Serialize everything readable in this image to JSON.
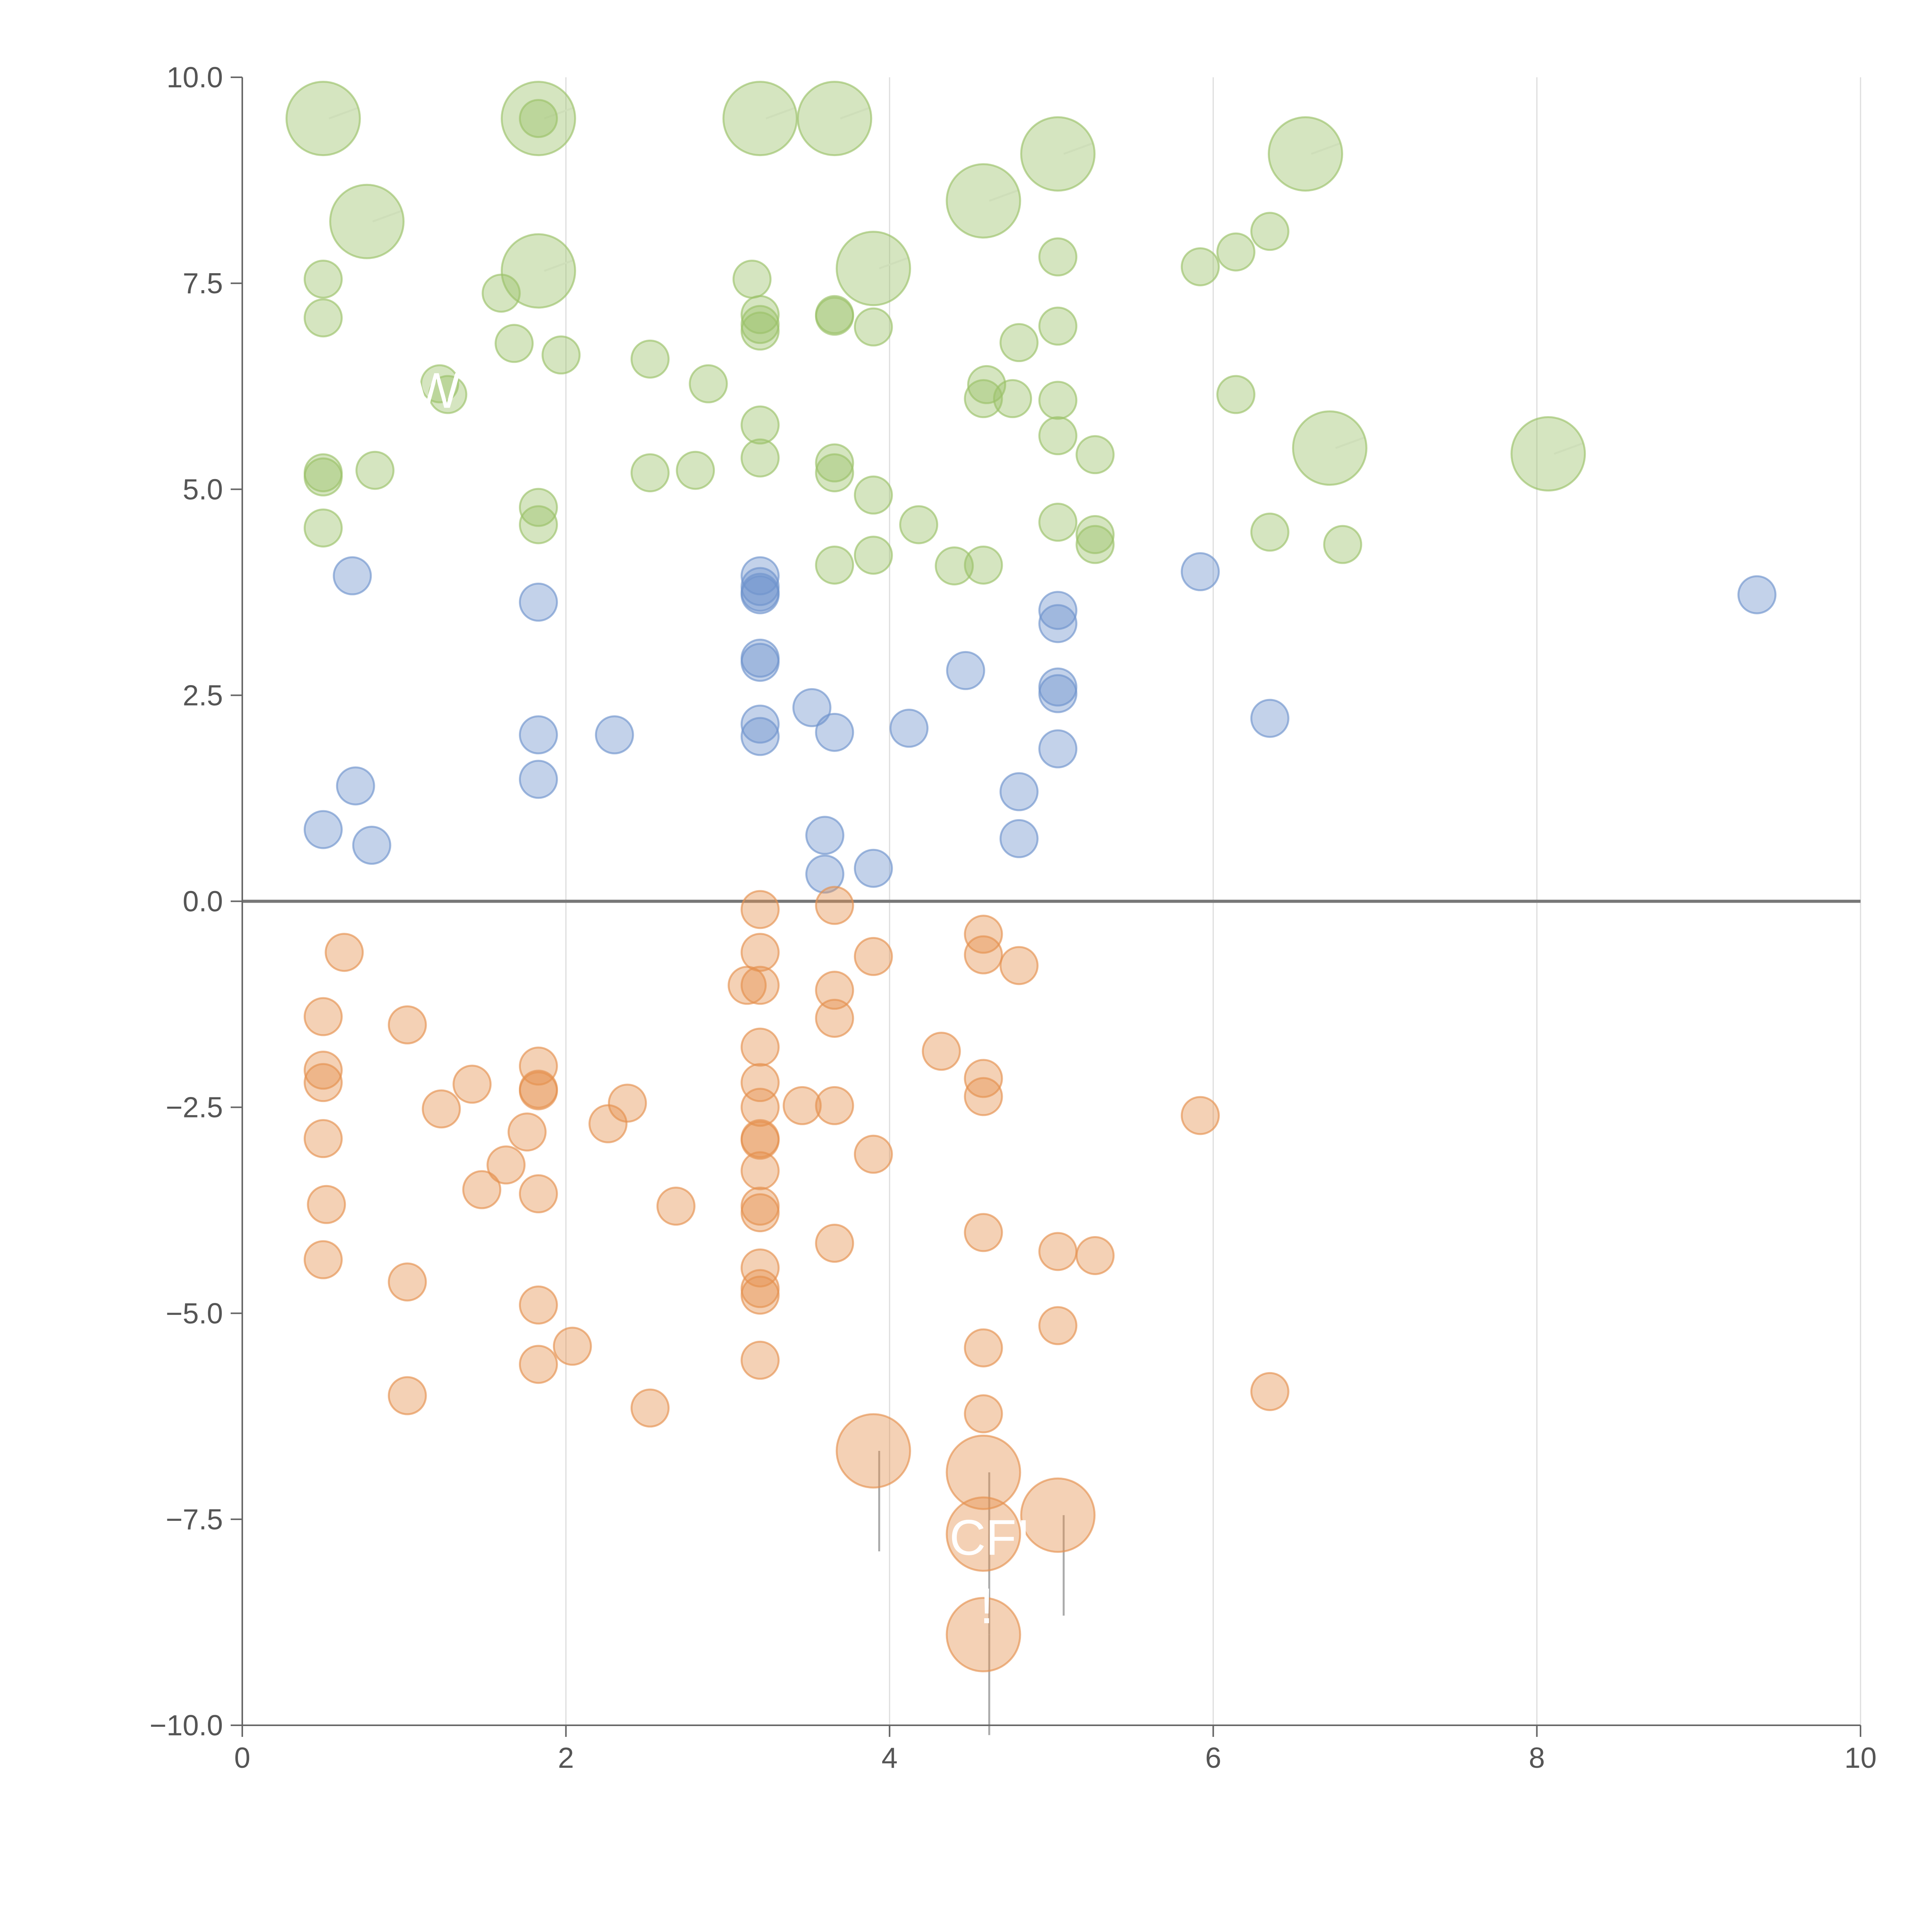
{
  "chart_data": {
    "type": "scatter",
    "title": "",
    "xlabel": "",
    "ylabel": "",
    "xlim": [
      0,
      10
    ],
    "ylim": [
      -10,
      10
    ],
    "x_ticks": [
      0,
      2,
      4,
      6,
      8,
      10
    ],
    "x_tick_labels": [
      "0",
      "2",
      "4",
      "6",
      "8",
      "10"
    ],
    "y_ticks": [
      -10,
      -7.5,
      -5,
      -2.5,
      0,
      2.5,
      5,
      7.5,
      10
    ],
    "y_tick_labels": [
      "−10.0",
      "−7.5",
      "−5.0",
      "−2.5",
      "0.0",
      "2.5",
      "5.0",
      "7.5",
      "10.0"
    ],
    "grid": "vertical",
    "zero_line": 0,
    "colors": {
      "green": "#9bc268",
      "blue": "#6f94cd",
      "orange": "#e5914f",
      "axis": "#666666",
      "grid": "#dddddd",
      "zero_line": "#777777",
      "leader_light": "#f3f3f3",
      "leader_dark": "#aaaaaa"
    },
    "series": [
      {
        "name": "green",
        "color": "#9bc268",
        "points": [
          [
            0.5,
            9.5,
            "l"
          ],
          [
            1.83,
            9.5,
            "l"
          ],
          [
            3.2,
            9.5,
            "l"
          ],
          [
            3.66,
            9.5,
            "l"
          ],
          [
            5.04,
            9.07,
            "l"
          ],
          [
            6.57,
            9.07,
            "l"
          ],
          [
            0.77,
            8.25,
            "l"
          ],
          [
            4.58,
            8.5,
            "l"
          ],
          [
            1.83,
            7.65,
            "l"
          ],
          [
            3.9,
            7.68,
            "l"
          ],
          [
            6.72,
            5.5,
            "l"
          ],
          [
            8.07,
            5.43,
            "l"
          ],
          [
            1.83,
            9.5,
            "s"
          ],
          [
            0.5,
            7.55
          ],
          [
            0.5,
            7.08
          ],
          [
            1.6,
            7.38
          ],
          [
            1.68,
            6.77
          ],
          [
            1.97,
            6.63
          ],
          [
            1.27,
            6.15
          ],
          [
            1.22,
            6.28
          ],
          [
            2.52,
            6.58
          ],
          [
            2.88,
            6.28
          ],
          [
            3.15,
            7.55
          ],
          [
            3.2,
            7.12
          ],
          [
            3.2,
            7.0
          ],
          [
            3.2,
            6.92
          ],
          [
            3.66,
            7.12
          ],
          [
            3.66,
            7.1
          ],
          [
            3.9,
            6.97
          ],
          [
            3.2,
            5.78
          ],
          [
            3.2,
            5.38
          ],
          [
            3.66,
            5.32
          ],
          [
            3.66,
            5.2
          ],
          [
            3.9,
            4.93
          ],
          [
            3.66,
            4.08
          ],
          [
            3.9,
            4.2
          ],
          [
            4.18,
            4.57
          ],
          [
            4.4,
            4.07
          ],
          [
            4.58,
            4.08
          ],
          [
            4.6,
            6.27
          ],
          [
            4.58,
            6.1
          ],
          [
            4.76,
            6.1
          ],
          [
            4.8,
            6.78
          ],
          [
            5.04,
            7.82
          ],
          [
            5.04,
            6.98
          ],
          [
            5.04,
            6.08
          ],
          [
            5.04,
            5.65
          ],
          [
            5.04,
            4.6
          ],
          [
            5.27,
            5.42
          ],
          [
            5.27,
            4.45
          ],
          [
            5.27,
            4.33
          ],
          [
            5.92,
            7.7
          ],
          [
            6.14,
            7.88
          ],
          [
            6.35,
            8.13
          ],
          [
            6.14,
            6.15
          ],
          [
            6.35,
            4.48
          ],
          [
            6.8,
            4.33
          ],
          [
            0.5,
            5.2
          ],
          [
            0.5,
            5.15
          ],
          [
            0.82,
            5.23
          ],
          [
            0.5,
            4.53
          ],
          [
            1.83,
            4.78
          ],
          [
            1.83,
            4.57
          ],
          [
            2.52,
            5.2
          ],
          [
            2.8,
            5.23
          ]
        ]
      },
      {
        "name": "blue",
        "color": "#6f94cd",
        "points": [
          [
            0.68,
            3.95
          ],
          [
            1.83,
            3.63
          ],
          [
            3.2,
            3.95
          ],
          [
            3.2,
            3.82
          ],
          [
            3.2,
            3.72
          ],
          [
            3.2,
            3.75
          ],
          [
            5.92,
            4.0
          ],
          [
            9.36,
            3.72
          ],
          [
            5.04,
            3.53
          ],
          [
            5.04,
            3.37
          ],
          [
            3.2,
            2.95
          ],
          [
            3.2,
            2.9
          ],
          [
            4.47,
            2.8
          ],
          [
            5.04,
            2.6
          ],
          [
            5.04,
            2.52
          ],
          [
            3.52,
            2.35
          ],
          [
            3.2,
            2.15
          ],
          [
            3.66,
            2.05
          ],
          [
            3.2,
            2.0
          ],
          [
            1.83,
            2.02
          ],
          [
            2.3,
            2.02
          ],
          [
            4.12,
            2.1
          ],
          [
            5.04,
            1.85
          ],
          [
            6.35,
            2.22
          ],
          [
            0.7,
            1.4
          ],
          [
            1.83,
            1.48
          ],
          [
            4.8,
            1.33
          ],
          [
            0.5,
            0.87
          ],
          [
            0.8,
            0.68
          ],
          [
            3.6,
            0.8
          ],
          [
            3.6,
            0.33
          ],
          [
            3.9,
            0.4
          ],
          [
            4.8,
            0.76
          ]
        ]
      },
      {
        "name": "orange",
        "color": "#e5914f",
        "points": [
          [
            3.2,
            -0.1
          ],
          [
            3.66,
            -0.05
          ],
          [
            4.58,
            -0.4
          ],
          [
            4.58,
            -0.65
          ],
          [
            4.8,
            -0.78
          ],
          [
            3.2,
            -0.62
          ],
          [
            3.9,
            -0.67
          ],
          [
            0.63,
            -0.62
          ],
          [
            3.12,
            -1.02
          ],
          [
            3.2,
            -1.02
          ],
          [
            3.66,
            -1.08
          ],
          [
            3.66,
            -1.42
          ],
          [
            0.5,
            -1.4
          ],
          [
            1.02,
            -1.5
          ],
          [
            3.2,
            -1.77
          ],
          [
            4.32,
            -1.82
          ],
          [
            0.5,
            -2.05
          ],
          [
            0.5,
            -2.2
          ],
          [
            1.42,
            -2.22
          ],
          [
            1.83,
            -2.0
          ],
          [
            1.83,
            -2.28
          ],
          [
            1.83,
            -2.3
          ],
          [
            3.2,
            -2.2
          ],
          [
            4.58,
            -2.15
          ],
          [
            4.58,
            -2.37
          ],
          [
            2.38,
            -2.45
          ],
          [
            3.46,
            -2.48
          ],
          [
            3.66,
            -2.48
          ],
          [
            1.23,
            -2.52
          ],
          [
            3.2,
            -2.5
          ],
          [
            2.26,
            -2.7
          ],
          [
            1.76,
            -2.8
          ],
          [
            0.5,
            -2.88
          ],
          [
            3.2,
            -2.88
          ],
          [
            3.2,
            -2.9
          ],
          [
            5.92,
            -2.6
          ],
          [
            3.9,
            -3.07
          ],
          [
            1.63,
            -3.2
          ],
          [
            3.2,
            -3.27
          ],
          [
            1.48,
            -3.5
          ],
          [
            1.83,
            -3.55
          ],
          [
            0.52,
            -3.68
          ],
          [
            2.68,
            -3.7
          ],
          [
            3.2,
            -3.7
          ],
          [
            3.2,
            -3.78
          ],
          [
            3.66,
            -4.15
          ],
          [
            4.58,
            -4.02
          ],
          [
            5.04,
            -4.25
          ],
          [
            5.27,
            -4.3
          ],
          [
            0.5,
            -4.35
          ],
          [
            1.02,
            -4.62
          ],
          [
            3.2,
            -4.45
          ],
          [
            3.2,
            -4.7
          ],
          [
            3.2,
            -4.78
          ],
          [
            1.83,
            -4.9
          ],
          [
            5.04,
            -5.15
          ],
          [
            2.04,
            -5.4
          ],
          [
            4.58,
            -5.42
          ],
          [
            1.83,
            -5.62
          ],
          [
            3.2,
            -5.57
          ],
          [
            1.02,
            -6.0
          ],
          [
            2.52,
            -6.15
          ],
          [
            4.58,
            -6.22
          ],
          [
            6.35,
            -5.95
          ],
          [
            3.9,
            -6.67,
            "l"
          ],
          [
            4.58,
            -6.93,
            "l"
          ],
          [
            5.04,
            -7.45,
            "l"
          ],
          [
            4.58,
            -7.68,
            "l"
          ],
          [
            4.58,
            -8.9,
            "l"
          ]
        ]
      }
    ],
    "annotations": [
      {
        "text": "W",
        "x": 1.2,
        "y": 6.2
      },
      {
        "text": "CFI",
        "x": 4.62,
        "y": -7.72
      },
      {
        "text": "!",
        "x": 4.6,
        "y": -8.55
      }
    ]
  }
}
